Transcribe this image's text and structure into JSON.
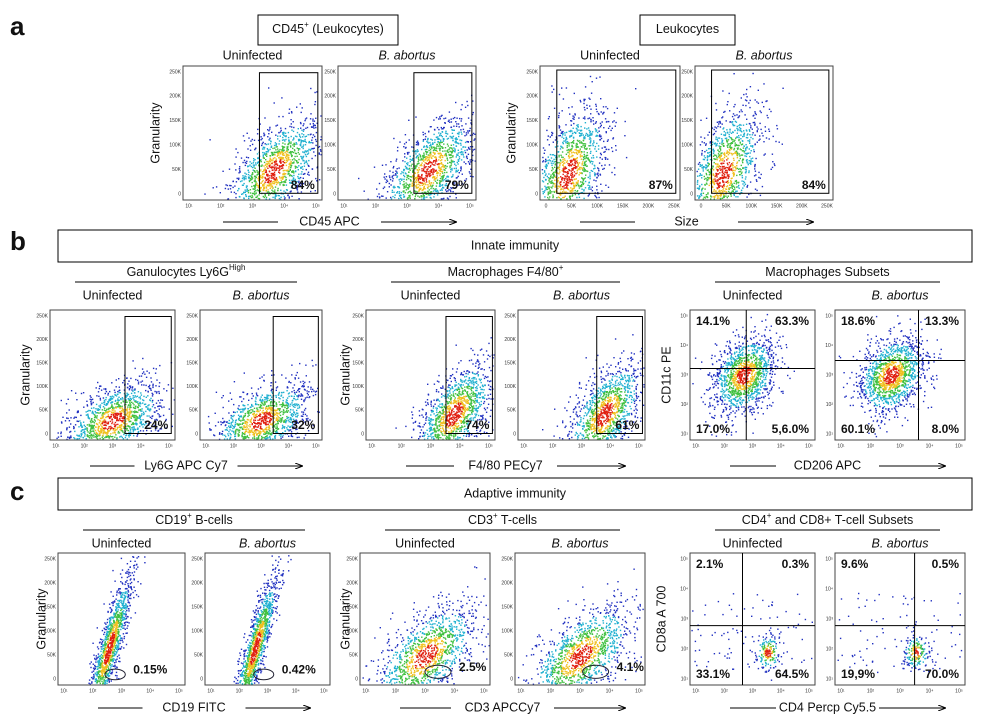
{
  "panels": [
    {
      "letter": "a",
      "groups": [
        {
          "header": "CD45",
          "header_sup": "+",
          "header_suffix": " (Leukocytes)",
          "kind": "gate",
          "x_axis": "log",
          "y_label": "Granularity",
          "x_label": "CD45 APC",
          "plots": [
            {
              "title": "Uninfected",
              "italic": false,
              "percent": "84%"
            },
            {
              "title": "B. abortus",
              "italic": true,
              "percent": "79%"
            }
          ]
        },
        {
          "header": "Leukocytes",
          "kind": "gate",
          "x_axis": "linear",
          "y_label": "Granularity",
          "x_label": "Size",
          "plots": [
            {
              "title": "Uninfected",
              "italic": false,
              "percent": "87%"
            },
            {
              "title": "B. abortus",
              "italic": true,
              "percent": "84%"
            }
          ]
        }
      ]
    },
    {
      "letter": "b",
      "banner": "Innate immunity",
      "groups": [
        {
          "header": "Ganulocytes Ly6G",
          "header_sup": "High",
          "kind": "gate",
          "x_axis": "log",
          "y_label": "Granularity",
          "x_label": "Ly6G APC Cy7",
          "plots": [
            {
              "title": "Uninfected",
              "italic": false,
              "percent": "24%"
            },
            {
              "title": "B. abortus",
              "italic": true,
              "percent": "32%"
            }
          ]
        },
        {
          "header": "Macrophages F4/80",
          "header_sup": "+",
          "kind": "gate",
          "x_axis": "log",
          "y_label": "Granularity",
          "x_label": "F4/80 PECy7",
          "plots": [
            {
              "title": "Uninfected",
              "italic": false,
              "percent": "74%"
            },
            {
              "title": "B. abortus",
              "italic": true,
              "percent": "61%"
            }
          ]
        },
        {
          "header": "Macrophages Subsets",
          "kind": "quadrant",
          "x_axis": "log",
          "y_label": "CD11c PE",
          "x_label": "CD206 APC",
          "plots": [
            {
              "title": "Uninfected",
              "italic": false,
              "quadrants": [
                "14.1%",
                "63.3%",
                "17.0%",
                "5,6.0%"
              ]
            },
            {
              "title": "B. abortus",
              "italic": true,
              "quadrants": [
                "18.6%",
                "13.3%",
                "60.1%",
                "8.0%"
              ]
            }
          ]
        }
      ]
    },
    {
      "letter": "c",
      "banner": "Adaptive immunity",
      "groups": [
        {
          "header": "CD19",
          "header_sup": "+",
          "header_suffix": " B-cells",
          "kind": "ellipse",
          "x_axis": "log",
          "y_label": "Granularity",
          "x_label": "CD19 FITC",
          "plots": [
            {
              "title": "Uninfected",
              "italic": false,
              "percent": "0.15%"
            },
            {
              "title": "B. abortus",
              "italic": true,
              "percent": "0.42%"
            }
          ]
        },
        {
          "header": "CD3",
          "header_sup": "+",
          "header_suffix": " T-cells",
          "kind": "ellipse",
          "x_axis": "log",
          "y_label": "Granularity",
          "x_label": "CD3 APCCy7",
          "plots": [
            {
              "title": "Uninfected",
              "italic": false,
              "percent": "2.5%"
            },
            {
              "title": "B. abortus",
              "italic": true,
              "percent": "4.1%"
            }
          ]
        },
        {
          "header": "CD4",
          "header_sup": "+",
          "header_suffix": " and CD8+ T-cell Subsets",
          "kind": "quadrant",
          "x_axis": "log",
          "y_label": "CD8a A 700",
          "x_label": "CD4 Percp Cy5.5",
          "plots": [
            {
              "title": "Uninfected",
              "italic": false,
              "quadrants": [
                "2.1%",
                "0.3%",
                "33.1%",
                "64.5%"
              ]
            },
            {
              "title": "B. abortus",
              "italic": true,
              "quadrants": [
                "9.6%",
                "0.5%",
                "19,9%",
                "70.0%"
              ]
            }
          ]
        }
      ]
    }
  ],
  "ticks": {
    "linear": [
      "0",
      "50K",
      "100K",
      "150K",
      "200K",
      "250K"
    ],
    "log": [
      "10¹",
      "10²",
      "10³",
      "10⁴",
      "10⁵"
    ]
  }
}
